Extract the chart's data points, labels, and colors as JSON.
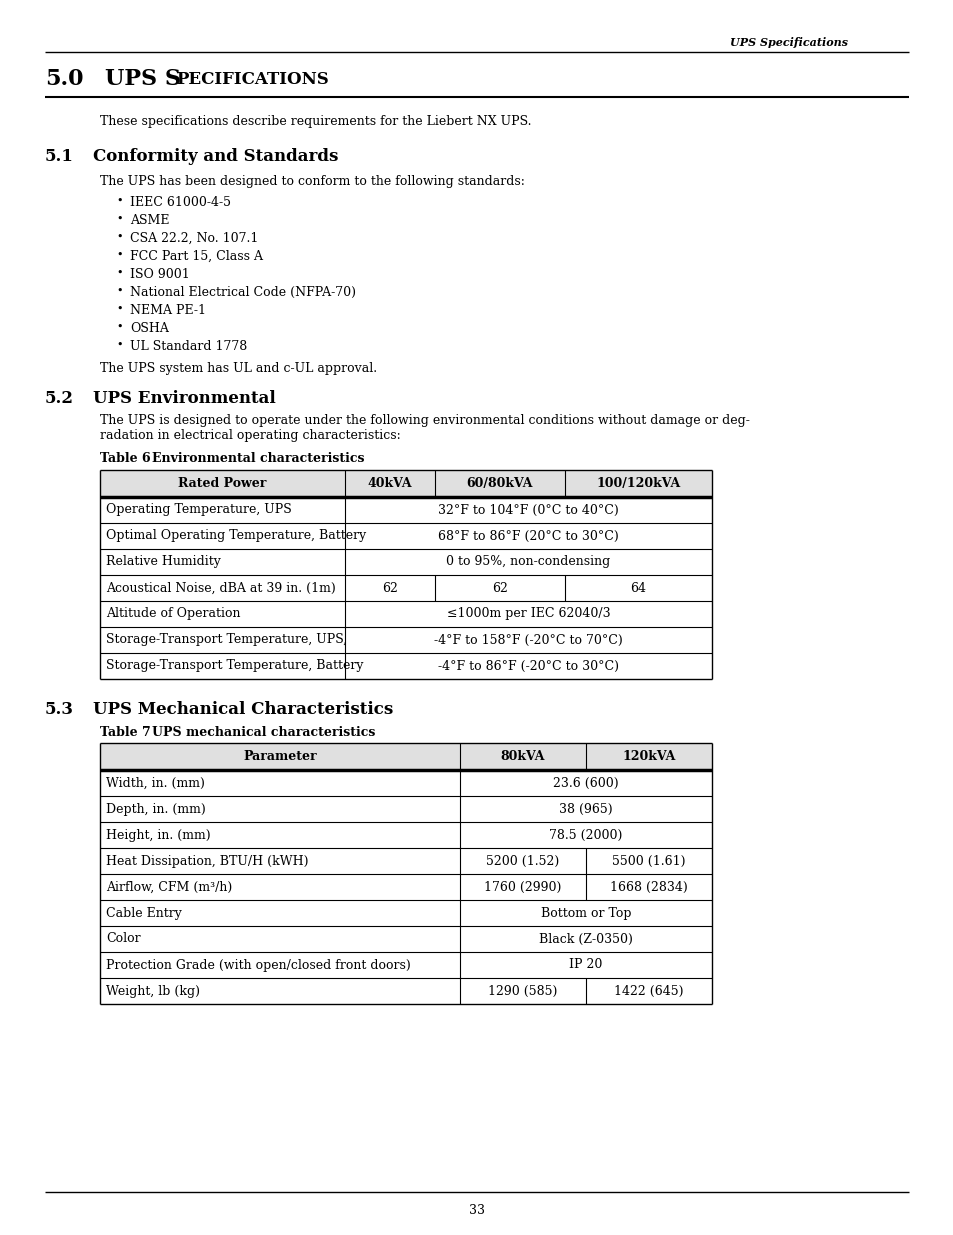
{
  "header_italic": "UPS Specifications",
  "section_50_num": "5.0",
  "section_50_title_ups": "UPS S",
  "section_50_title_pec": "PECIFICATIONS",
  "intro_text": "These specifications describe requirements for the Liebert NX UPS.",
  "section_51_num": "5.1",
  "section_51_title": "Conformity and Standards",
  "section_51_intro": "The UPS has been designed to conform to the following standards:",
  "section_51_bullets": [
    "IEEC 61000-4-5",
    "ASME",
    "CSA 22.2, No. 107.1",
    "FCC Part 15, Class A",
    "ISO 9001",
    "National Electrical Code (NFPA-70)",
    "NEMA PE-1",
    "OSHA",
    "UL Standard 1778"
  ],
  "section_51_footer": "The UPS system has UL and c-UL approval.",
  "section_52_num": "5.2",
  "section_52_title": "UPS Environmental",
  "section_52_intro_line1": "The UPS is designed to operate under the following environmental conditions without damage or deg-",
  "section_52_intro_line2": "radation in electrical operating characteristics:",
  "table6_label": "Table 6",
  "table6_title": "Environmental characteristics",
  "table6_headers": [
    "Rated Power",
    "40kVA",
    "60/80kVA",
    "100/120kVA"
  ],
  "table6_rows": [
    [
      "Operating Temperature, UPS",
      "32°F to 104°F (0°C to 40°C)",
      "",
      ""
    ],
    [
      "Optimal Operating Temperature, Battery",
      "68°F to 86°F (20°C to 30°C)",
      "",
      ""
    ],
    [
      "Relative Humidity",
      "0 to 95%, non-condensing",
      "",
      ""
    ],
    [
      "Acoustical Noise, dBA at 39 in. (1m)",
      "62",
      "62",
      "64"
    ],
    [
      "Altitude of Operation",
      "≤1000m per IEC 62040/3",
      "",
      ""
    ],
    [
      "Storage-Transport Temperature, UPS,",
      "-4°F to 158°F (-20°C to 70°C)",
      "",
      ""
    ],
    [
      "Storage-Transport Temperature, Battery",
      "-4°F to 86°F (-20°C to 30°C)",
      "",
      ""
    ]
  ],
  "section_53_num": "5.3",
  "section_53_title": "UPS Mechanical Characteristics",
  "table7_label": "Table 7",
  "table7_title": "UPS mechanical characteristics",
  "table7_headers": [
    "Parameter",
    "80kVA",
    "120kVA"
  ],
  "table7_rows": [
    [
      "Width, in. (mm)",
      "23.6 (600)",
      ""
    ],
    [
      "Depth, in. (mm)",
      "38 (965)",
      ""
    ],
    [
      "Height, in. (mm)",
      "78.5 (2000)",
      ""
    ],
    [
      "Heat Dissipation, BTU/H (kWH)",
      "5200 (1.52)",
      "5500 (1.61)"
    ],
    [
      "Airflow, CFM (m³/h)",
      "1760 (2990)",
      "1668 (2834)"
    ],
    [
      "Cable Entry",
      "Bottom or Top",
      ""
    ],
    [
      "Color",
      "Black (Z-0350)",
      ""
    ],
    [
      "Protection Grade (with open/closed front doors)",
      "IP 20",
      ""
    ],
    [
      "Weight, lb (kg)",
      "1290 (585)",
      "1422 (645)"
    ]
  ],
  "page_number": "33"
}
